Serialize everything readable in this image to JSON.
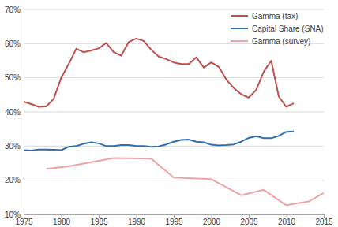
{
  "chart_data": {
    "type": "line",
    "xlim": [
      1975,
      2015
    ],
    "xticks": [
      1975,
      1980,
      1985,
      1990,
      1995,
      2000,
      2005,
      2010,
      2015
    ],
    "ylim": [
      10,
      70
    ],
    "yticks": [
      {
        "value": 10,
        "label": "10%"
      },
      {
        "value": 20,
        "label": "20%"
      },
      {
        "value": 30,
        "label": "30%"
      },
      {
        "value": 40,
        "label": "40%"
      },
      {
        "value": 50,
        "label": "50%"
      },
      {
        "value": 60,
        "label": "60%"
      },
      {
        "value": 70,
        "label": "70%"
      }
    ],
    "grid": true,
    "legend": "upper right",
    "series": [
      {
        "name": "Gamma (tax)",
        "color": "#c0504d",
        "x": [
          1975,
          1976,
          1977,
          1978,
          1979,
          1980,
          1981,
          1982,
          1983,
          1984,
          1985,
          1986,
          1987,
          1988,
          1989,
          1990,
          1991,
          1992,
          1993,
          1994,
          1995,
          1996,
          1997,
          1998,
          1999,
          2000,
          2001,
          2002,
          2003,
          2004,
          2005,
          2006,
          2007,
          2008,
          2009,
          2010,
          2011
        ],
        "values": [
          43,
          42.3,
          41.5,
          41.6,
          43.8,
          50,
          54,
          58.5,
          57.5,
          58,
          58.6,
          60.2,
          57.5,
          56.5,
          60.5,
          61.5,
          60.8,
          58.2,
          56.2,
          55.5,
          54.5,
          54,
          54,
          56,
          53,
          54.5,
          53.2,
          49.5,
          47,
          45.2,
          44.2,
          46.5,
          51.8,
          55,
          44.5,
          41.5,
          42.5
        ]
      },
      {
        "name": "Capital Share (SNA)",
        "color": "#2f6eb0",
        "x": [
          1975,
          1976,
          1977,
          1978,
          1979,
          1980,
          1981,
          1982,
          1983,
          1984,
          1985,
          1986,
          1987,
          1988,
          1989,
          1990,
          1991,
          1992,
          1993,
          1994,
          1995,
          1996,
          1997,
          1998,
          1999,
          2000,
          2001,
          2002,
          2003,
          2004,
          2005,
          2006,
          2007,
          2008,
          2009,
          2010,
          2011
        ],
        "values": [
          28.8,
          28.7,
          29,
          29,
          28.9,
          28.8,
          29.8,
          30,
          30.7,
          31.1,
          30.8,
          30,
          30,
          30.3,
          30.3,
          30,
          30,
          29.8,
          29.9,
          30.5,
          31.3,
          31.8,
          31.9,
          31.3,
          31.1,
          30.4,
          30.2,
          30.3,
          30.5,
          31.3,
          32.4,
          32.9,
          32.3,
          32.3,
          33,
          34.2,
          34.3
        ]
      },
      {
        "name": "Gamma (survey)",
        "color": "#f0a3a3",
        "x": [
          1978,
          1981,
          1984,
          1987,
          1992,
          1995,
          2000,
          2004,
          2007,
          2010,
          2013,
          2015
        ],
        "values": [
          23.3,
          24.1,
          25.3,
          26.5,
          26.3,
          20.8,
          20.3,
          15.6,
          17.2,
          12.7,
          13.8,
          16.3
        ]
      }
    ]
  }
}
